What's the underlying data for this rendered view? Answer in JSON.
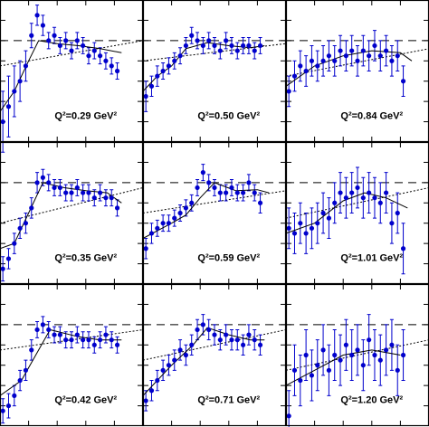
{
  "chart_data": [
    {
      "type": "scatter",
      "label": "Q²=0.29 GeV²",
      "color": "#0000cc",
      "xlim": [
        0,
        1
      ],
      "ylim": [
        0,
        1.4
      ],
      "xticks": [
        0.2,
        0.4,
        0.6,
        0.8
      ],
      "yticks": [
        0.2,
        0.4,
        0.6,
        0.8,
        1,
        1.2
      ],
      "reference": 1,
      "x": [
        0.02,
        0.06,
        0.1,
        0.14,
        0.18,
        0.22,
        0.26,
        0.3,
        0.34,
        0.38,
        0.42,
        0.46,
        0.5,
        0.54,
        0.58,
        0.62,
        0.66,
        0.7,
        0.74,
        0.78,
        0.82
      ],
      "values": [
        0.2,
        0.35,
        0.5,
        0.6,
        0.75,
        1.05,
        1.25,
        1.15,
        1.0,
        1.05,
        0.95,
        1.0,
        0.9,
        1.0,
        0.95,
        0.85,
        0.9,
        0.85,
        0.8,
        0.75,
        0.7
      ],
      "errors": [
        0.3,
        0.3,
        0.25,
        0.2,
        0.15,
        0.12,
        0.1,
        0.1,
        0.08,
        0.08,
        0.08,
        0.08,
        0.08,
        0.08,
        0.08,
        0.08,
        0.08,
        0.08,
        0.08,
        0.08,
        0.08
      ],
      "fit": {
        "x": [
          0,
          0.1,
          0.2,
          0.27,
          0.4,
          0.55,
          0.7,
          0.85
        ],
        "values": [
          0.3,
          0.5,
          0.8,
          1.0,
          0.97,
          0.95,
          0.92,
          0.88
        ]
      },
      "trend": {
        "x": [
          0,
          1
        ],
        "values": [
          0.75,
          1.0
        ]
      }
    },
    {
      "type": "scatter",
      "label": "Q²=0.50 GeV²",
      "color": "#0000cc",
      "xlim": [
        0,
        1
      ],
      "ylim": [
        0,
        1.4
      ],
      "xticks": [
        0.2,
        0.4,
        0.6,
        0.8
      ],
      "yticks": [
        0.2,
        0.4,
        0.6,
        0.8,
        1,
        1.2
      ],
      "reference": 1,
      "x": [
        0.02,
        0.06,
        0.1,
        0.14,
        0.18,
        0.22,
        0.26,
        0.3,
        0.34,
        0.38,
        0.42,
        0.46,
        0.5,
        0.54,
        0.58,
        0.62,
        0.66,
        0.7,
        0.74,
        0.78,
        0.82
      ],
      "values": [
        0.45,
        0.55,
        0.65,
        0.7,
        0.75,
        0.8,
        0.85,
        0.95,
        1.05,
        1.0,
        0.95,
        1.0,
        0.95,
        0.9,
        1.0,
        0.95,
        0.9,
        0.95,
        0.95,
        0.9,
        0.95
      ],
      "errors": [
        0.15,
        0.1,
        0.1,
        0.08,
        0.08,
        0.08,
        0.08,
        0.08,
        0.08,
        0.08,
        0.08,
        0.08,
        0.08,
        0.08,
        0.08,
        0.08,
        0.08,
        0.08,
        0.08,
        0.08,
        0.08
      ],
      "fit": {
        "x": [
          0,
          0.1,
          0.2,
          0.3,
          0.45,
          0.6,
          0.75,
          0.85
        ],
        "values": [
          0.5,
          0.65,
          0.75,
          0.92,
          0.98,
          0.95,
          0.93,
          0.95
        ]
      },
      "trend": {
        "x": [
          0,
          1
        ],
        "values": [
          0.8,
          0.97
        ]
      }
    },
    {
      "type": "scatter",
      "label": "Q²=0.84 GeV²",
      "color": "#0000cc",
      "xlim": [
        0,
        1
      ],
      "ylim": [
        0,
        1.4
      ],
      "xticks": [
        0.2,
        0.4,
        0.6,
        0.8
      ],
      "yticks": [
        0.2,
        0.4,
        0.6,
        0.8,
        1,
        1.2
      ],
      "reference": 1,
      "x": [
        0.02,
        0.06,
        0.1,
        0.14,
        0.18,
        0.22,
        0.26,
        0.3,
        0.34,
        0.38,
        0.42,
        0.46,
        0.5,
        0.54,
        0.58,
        0.62,
        0.66,
        0.7,
        0.74,
        0.78,
        0.82
      ],
      "values": [
        0.5,
        0.65,
        0.75,
        0.7,
        0.8,
        0.75,
        0.8,
        0.85,
        0.8,
        0.9,
        0.85,
        0.9,
        0.8,
        0.9,
        0.85,
        0.95,
        0.85,
        0.9,
        0.8,
        0.85,
        0.6
      ],
      "errors": [
        0.15,
        0.15,
        0.15,
        0.15,
        0.15,
        0.15,
        0.15,
        0.15,
        0.15,
        0.15,
        0.15,
        0.15,
        0.15,
        0.15,
        0.15,
        0.15,
        0.15,
        0.15,
        0.15,
        0.15,
        0.15
      ],
      "fit": {
        "x": [
          0,
          0.2,
          0.4,
          0.6,
          0.8,
          0.88
        ],
        "values": [
          0.55,
          0.75,
          0.85,
          0.9,
          0.88,
          0.8
        ]
      },
      "trend": {
        "x": [
          0,
          1
        ],
        "values": [
          0.65,
          0.92
        ]
      }
    },
    {
      "type": "scatter",
      "label": "Q²=0.35 GeV²",
      "color": "#0000cc",
      "xlim": [
        0,
        1
      ],
      "ylim": [
        0,
        1.4
      ],
      "xticks": [
        0.2,
        0.4,
        0.6,
        0.8
      ],
      "yticks": [
        0.2,
        0.4,
        0.6,
        0.8,
        1,
        1.2
      ],
      "reference": 1,
      "x": [
        0.02,
        0.06,
        0.1,
        0.14,
        0.18,
        0.22,
        0.26,
        0.3,
        0.34,
        0.38,
        0.42,
        0.46,
        0.5,
        0.54,
        0.58,
        0.62,
        0.66,
        0.7,
        0.74,
        0.78,
        0.82
      ],
      "values": [
        0.15,
        0.25,
        0.4,
        0.55,
        0.6,
        0.75,
        1.0,
        1.05,
        1.0,
        0.95,
        0.95,
        0.9,
        0.9,
        0.95,
        0.9,
        0.9,
        0.85,
        0.9,
        0.85,
        0.85,
        0.75
      ],
      "errors": [
        0.12,
        0.1,
        0.1,
        0.1,
        0.1,
        0.1,
        0.1,
        0.08,
        0.08,
        0.08,
        0.08,
        0.08,
        0.08,
        0.08,
        0.08,
        0.08,
        0.08,
        0.08,
        0.08,
        0.08,
        0.08
      ],
      "fit": {
        "x": [
          0,
          0.1,
          0.2,
          0.3,
          0.45,
          0.6,
          0.75,
          0.85
        ],
        "values": [
          0.35,
          0.4,
          0.7,
          1.0,
          0.95,
          0.92,
          0.9,
          0.8
        ]
      },
      "trend": {
        "x": [
          0,
          1
        ],
        "values": [
          0.6,
          0.95
        ]
      }
    },
    {
      "type": "scatter",
      "label": "Q²=0.59 GeV²",
      "color": "#0000cc",
      "xlim": [
        0,
        1
      ],
      "ylim": [
        0,
        1.4
      ],
      "xticks": [
        0.2,
        0.4,
        0.6,
        0.8
      ],
      "yticks": [
        0.2,
        0.4,
        0.6,
        0.8,
        1,
        1.2
      ],
      "reference": 1,
      "x": [
        0.02,
        0.06,
        0.1,
        0.14,
        0.18,
        0.22,
        0.26,
        0.3,
        0.34,
        0.38,
        0.42,
        0.46,
        0.5,
        0.54,
        0.58,
        0.62,
        0.66,
        0.7,
        0.74,
        0.78,
        0.82
      ],
      "values": [
        0.35,
        0.5,
        0.55,
        0.6,
        0.6,
        0.65,
        0.7,
        0.75,
        0.8,
        0.95,
        1.1,
        1.0,
        0.95,
        0.9,
        0.9,
        0.95,
        0.9,
        0.9,
        1.0,
        0.9,
        0.8
      ],
      "errors": [
        0.1,
        0.1,
        0.08,
        0.08,
        0.08,
        0.08,
        0.08,
        0.08,
        0.08,
        0.08,
        0.08,
        0.08,
        0.08,
        0.08,
        0.08,
        0.08,
        0.08,
        0.08,
        0.08,
        0.08,
        0.1
      ],
      "fit": {
        "x": [
          0,
          0.2,
          0.3,
          0.4,
          0.5,
          0.65,
          0.8,
          0.88
        ],
        "values": [
          0.45,
          0.6,
          0.68,
          0.85,
          1.0,
          0.92,
          0.93,
          0.9
        ]
      },
      "trend": {
        "x": [
          0,
          1
        ],
        "values": [
          0.7,
          0.92
        ]
      }
    },
    {
      "type": "scatter",
      "label": "Q²=1.01 GeV²",
      "color": "#0000cc",
      "xlim": [
        0,
        1
      ],
      "ylim": [
        0,
        1.4
      ],
      "xticks": [
        0.2,
        0.4,
        0.6,
        0.8
      ],
      "yticks": [
        0.2,
        0.4,
        0.6,
        0.8,
        1,
        1.2
      ],
      "reference": 1,
      "x": [
        0.02,
        0.06,
        0.1,
        0.14,
        0.18,
        0.22,
        0.26,
        0.3,
        0.34,
        0.38,
        0.42,
        0.46,
        0.5,
        0.54,
        0.58,
        0.62,
        0.66,
        0.7,
        0.74,
        0.78,
        0.82
      ],
      "values": [
        0.55,
        0.5,
        0.6,
        0.5,
        0.55,
        0.6,
        0.7,
        0.65,
        0.8,
        0.9,
        0.85,
        0.9,
        0.95,
        0.85,
        0.9,
        0.85,
        0.8,
        0.9,
        0.6,
        0.7,
        0.35
      ],
      "errors": [
        0.2,
        0.2,
        0.2,
        0.2,
        0.2,
        0.2,
        0.2,
        0.2,
        0.2,
        0.2,
        0.2,
        0.2,
        0.2,
        0.2,
        0.2,
        0.2,
        0.2,
        0.2,
        0.2,
        0.2,
        0.25
      ],
      "fit": {
        "x": [
          0,
          0.2,
          0.4,
          0.55,
          0.7,
          0.85
        ],
        "values": [
          0.5,
          0.6,
          0.82,
          0.9,
          0.85,
          0.75
        ]
      },
      "trend": {
        "x": [
          0,
          1
        ],
        "values": [
          0.65,
          0.95
        ]
      }
    },
    {
      "type": "scatter",
      "label": "Q²=0.42 GeV²",
      "color": "#0000cc",
      "xlim": [
        0,
        1
      ],
      "ylim": [
        0,
        1.4
      ],
      "xticks": [
        0.2,
        0.4,
        0.6,
        0.8
      ],
      "yticks": [
        0.2,
        0.4,
        0.6,
        0.8,
        1,
        1.2
      ],
      "reference": 1,
      "x": [
        0.02,
        0.06,
        0.1,
        0.14,
        0.18,
        0.22,
        0.26,
        0.3,
        0.34,
        0.38,
        0.42,
        0.46,
        0.5,
        0.54,
        0.58,
        0.62,
        0.66,
        0.7,
        0.74,
        0.78,
        0.82
      ],
      "values": [
        0.15,
        0.2,
        0.3,
        0.45,
        0.55,
        0.75,
        0.95,
        1.0,
        0.95,
        0.9,
        0.9,
        0.85,
        0.85,
        0.9,
        0.85,
        0.85,
        0.8,
        0.85,
        0.9,
        0.85,
        0.8
      ],
      "errors": [
        0.12,
        0.12,
        0.1,
        0.1,
        0.1,
        0.1,
        0.08,
        0.08,
        0.08,
        0.08,
        0.08,
        0.08,
        0.08,
        0.08,
        0.08,
        0.08,
        0.08,
        0.08,
        0.08,
        0.08,
        0.08
      ],
      "fit": {
        "x": [
          0,
          0.15,
          0.25,
          0.35,
          0.55,
          0.7,
          0.85
        ],
        "values": [
          0.3,
          0.45,
          0.7,
          0.95,
          0.88,
          0.85,
          0.85
        ]
      },
      "trend": {
        "x": [
          0,
          1
        ],
        "values": [
          0.75,
          0.95
        ]
      }
    },
    {
      "type": "scatter",
      "label": "Q²=0.71 GeV²",
      "color": "#0000cc",
      "xlim": [
        0,
        1
      ],
      "ylim": [
        0,
        1.4
      ],
      "xticks": [
        0.2,
        0.4,
        0.6,
        0.8
      ],
      "yticks": [
        0.2,
        0.4,
        0.6,
        0.8,
        1,
        1.2
      ],
      "reference": 1,
      "x": [
        0.02,
        0.06,
        0.1,
        0.14,
        0.18,
        0.22,
        0.26,
        0.3,
        0.34,
        0.38,
        0.42,
        0.46,
        0.5,
        0.54,
        0.58,
        0.62,
        0.66,
        0.7,
        0.74,
        0.78,
        0.82
      ],
      "values": [
        0.25,
        0.35,
        0.45,
        0.55,
        0.6,
        0.65,
        0.75,
        0.7,
        0.8,
        0.95,
        1.0,
        0.95,
        0.9,
        0.85,
        0.9,
        0.85,
        0.85,
        0.8,
        0.9,
        0.85,
        0.8
      ],
      "errors": [
        0.1,
        0.1,
        0.1,
        0.1,
        0.1,
        0.1,
        0.1,
        0.1,
        0.1,
        0.1,
        0.1,
        0.1,
        0.1,
        0.1,
        0.1,
        0.1,
        0.1,
        0.1,
        0.1,
        0.1,
        0.1
      ],
      "fit": {
        "x": [
          0,
          0.2,
          0.35,
          0.45,
          0.6,
          0.75,
          0.85
        ],
        "values": [
          0.3,
          0.6,
          0.8,
          0.97,
          0.9,
          0.85,
          0.85
        ]
      },
      "trend": {
        "x": [
          0,
          1
        ],
        "values": [
          0.65,
          0.95
        ]
      }
    },
    {
      "type": "scatter",
      "label": "Q²=1.20 GeV²",
      "color": "#0000cc",
      "xlim": [
        0,
        1
      ],
      "ylim": [
        0,
        1.4
      ],
      "xticks": [
        0.2,
        0.4,
        0.6,
        0.8
      ],
      "yticks": [
        0.2,
        0.4,
        0.6,
        0.8,
        1,
        1.2
      ],
      "reference": 1,
      "x": [
        0.02,
        0.06,
        0.1,
        0.14,
        0.18,
        0.22,
        0.26,
        0.3,
        0.34,
        0.38,
        0.42,
        0.46,
        0.5,
        0.54,
        0.58,
        0.62,
        0.66,
        0.7,
        0.74,
        0.78,
        0.82
      ],
      "values": [
        0.1,
        0.55,
        0.45,
        0.7,
        0.5,
        0.6,
        0.75,
        0.55,
        0.7,
        0.65,
        0.8,
        0.7,
        0.75,
        0.6,
        0.85,
        0.7,
        0.65,
        0.75,
        0.8,
        0.55,
        0.7
      ],
      "errors": [
        0.25,
        0.25,
        0.25,
        0.25,
        0.25,
        0.25,
        0.25,
        0.25,
        0.25,
        0.25,
        0.25,
        0.25,
        0.25,
        0.25,
        0.25,
        0.25,
        0.25,
        0.25,
        0.25,
        0.25,
        0.25
      ],
      "fit": {
        "x": [
          0,
          0.2,
          0.4,
          0.6,
          0.8
        ],
        "values": [
          0.4,
          0.55,
          0.7,
          0.75,
          0.7
        ]
      },
      "trend": {
        "x": [
          0,
          1
        ],
        "values": [
          0.55,
          0.85
        ]
      }
    }
  ]
}
